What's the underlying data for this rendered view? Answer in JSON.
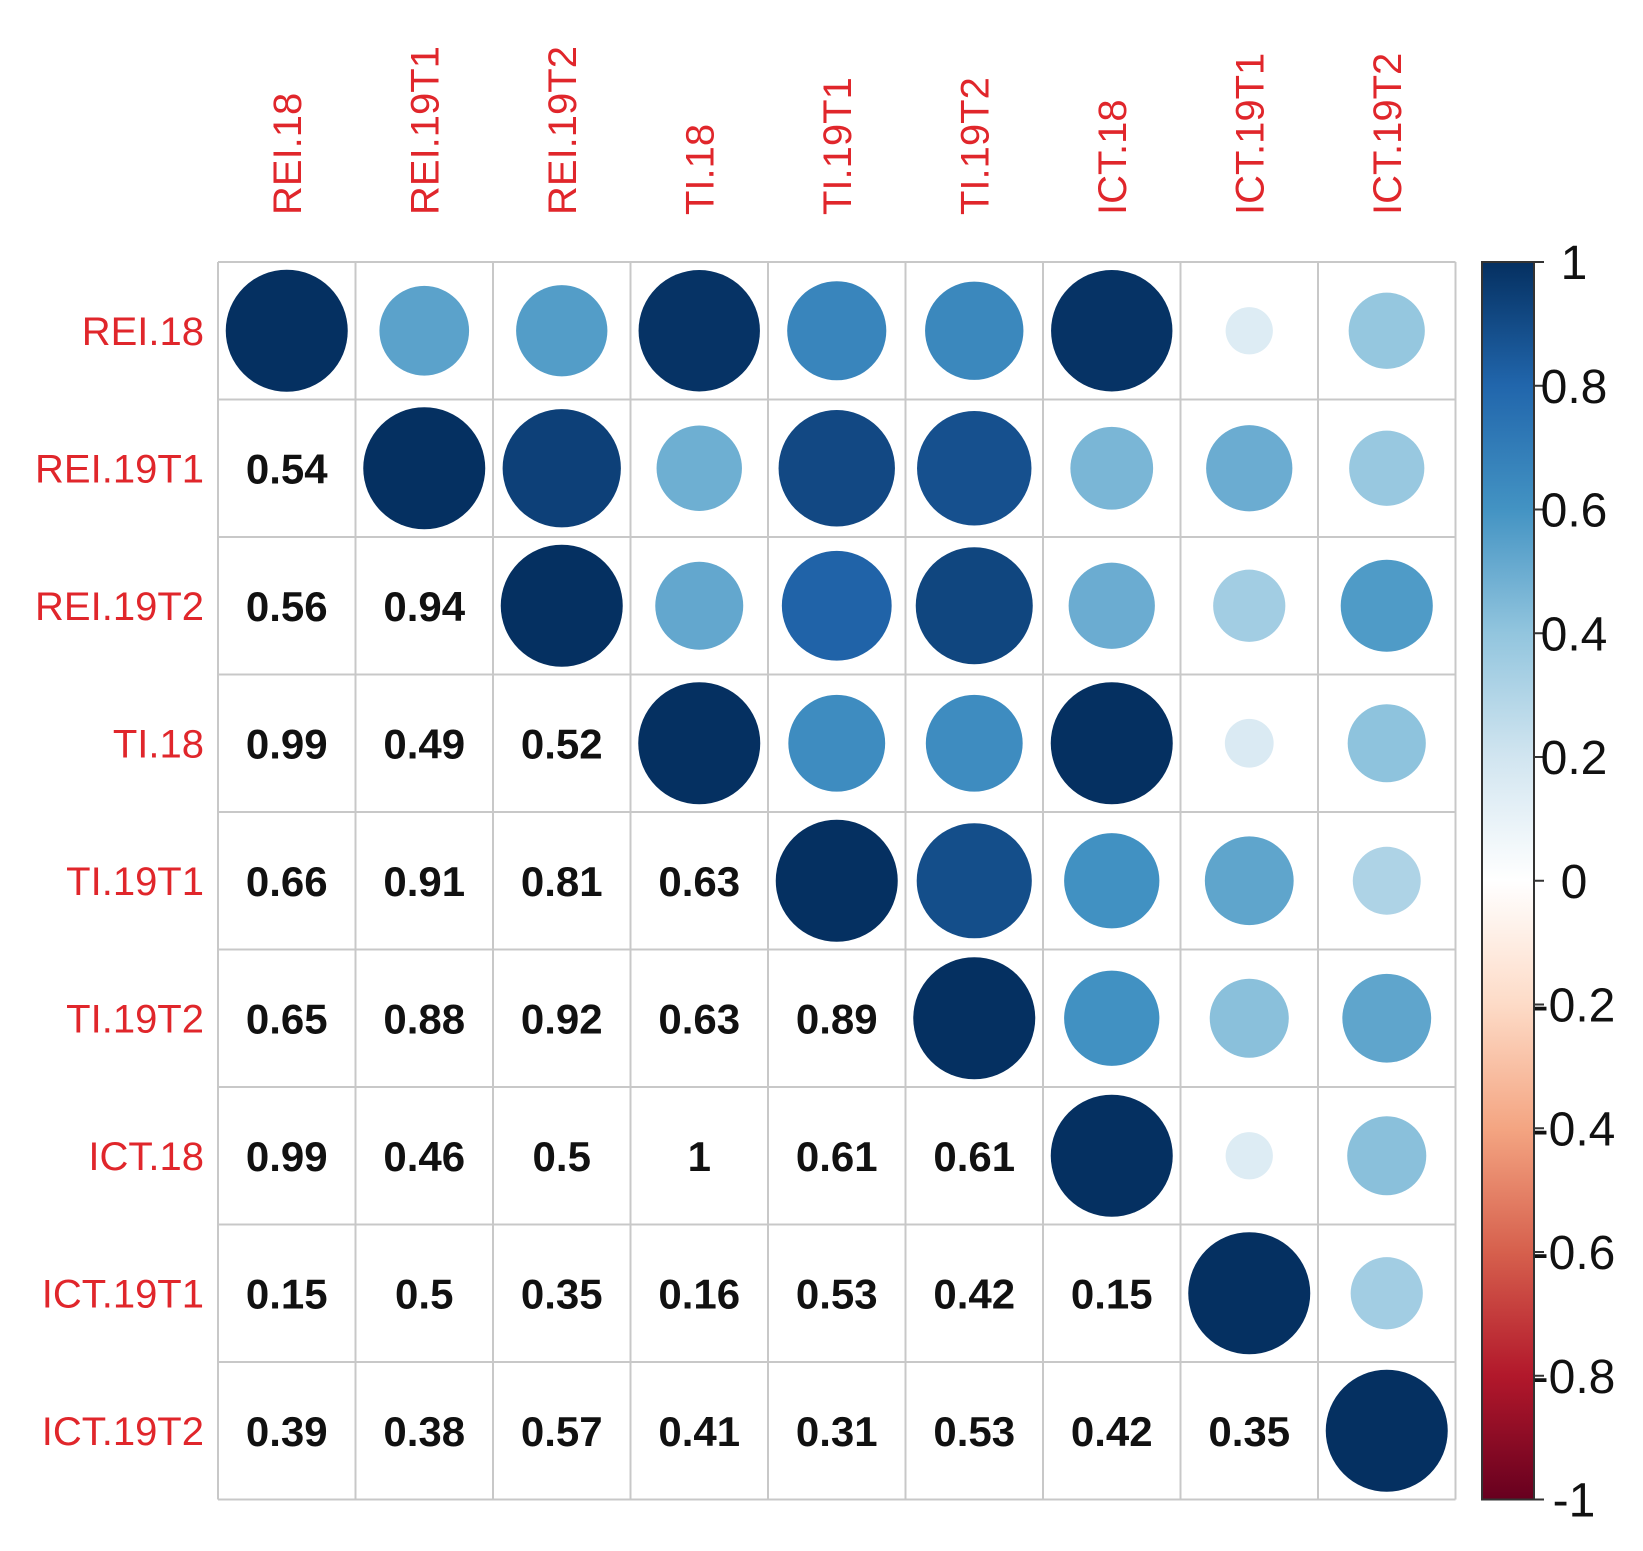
{
  "chart_data": {
    "type": "heatmap",
    "style": "correlation matrix: circles in upper triangle and diagonal, coefficients in lower triangle",
    "variables": [
      "REI.18",
      "REI.19T1",
      "REI.19T2",
      "TI.18",
      "TI.19T1",
      "TI.19T2",
      "ICT.18",
      "ICT.19T1",
      "ICT.19T2"
    ],
    "matrix": [
      [
        1,
        0.54,
        0.56,
        0.99,
        0.66,
        0.65,
        0.99,
        0.15,
        0.39
      ],
      [
        0.54,
        1,
        0.94,
        0.49,
        0.91,
        0.88,
        0.46,
        0.5,
        0.38
      ],
      [
        0.56,
        0.94,
        1,
        0.52,
        0.81,
        0.92,
        0.5,
        0.35,
        0.57
      ],
      [
        0.99,
        0.49,
        0.52,
        1,
        0.63,
        0.63,
        1,
        0.16,
        0.41
      ],
      [
        0.66,
        0.91,
        0.81,
        0.63,
        1,
        0.89,
        0.61,
        0.53,
        0.31
      ],
      [
        0.65,
        0.88,
        0.92,
        0.63,
        0.89,
        1,
        0.61,
        0.42,
        0.53
      ],
      [
        0.99,
        0.46,
        0.5,
        1,
        0.61,
        0.61,
        1,
        0.15,
        0.42
      ],
      [
        0.15,
        0.5,
        0.35,
        0.16,
        0.53,
        0.42,
        0.15,
        1,
        0.35
      ],
      [
        0.39,
        0.38,
        0.57,
        0.41,
        0.31,
        0.53,
        0.42,
        0.35,
        1
      ]
    ],
    "lower_labels": [
      [],
      [
        "0.54"
      ],
      [
        "0.56",
        "0.94"
      ],
      [
        "0.99",
        "0.49",
        "0.52"
      ],
      [
        "0.66",
        "0.91",
        "0.81",
        "0.63"
      ],
      [
        "0.65",
        "0.88",
        "0.92",
        "0.63",
        "0.89"
      ],
      [
        "0.99",
        "0.46",
        "0.5",
        "1",
        "0.61",
        "0.61"
      ],
      [
        "0.15",
        "0.5",
        "0.35",
        "0.16",
        "0.53",
        "0.42",
        "0.15"
      ],
      [
        "0.39",
        "0.38",
        "0.57",
        "0.41",
        "0.31",
        "0.53",
        "0.42",
        "0.35"
      ]
    ],
    "colorbar": {
      "range": [
        -1,
        1
      ],
      "ticks": [
        "1",
        "0.8",
        "0.6",
        "0.4",
        "0.2",
        "0",
        "-0.2",
        "-0.4",
        "-0.6",
        "-0.8",
        "-1"
      ],
      "palette": [
        "#67001f",
        "#b2182b",
        "#d6604d",
        "#f4a582",
        "#fddbc7",
        "#ffffff",
        "#d1e5f0",
        "#92c5de",
        "#4393c3",
        "#2166ac",
        "#053061"
      ]
    },
    "colors": {
      "label": "#e0262b",
      "grid": "#c8c8c8",
      "text": "#111111"
    }
  }
}
